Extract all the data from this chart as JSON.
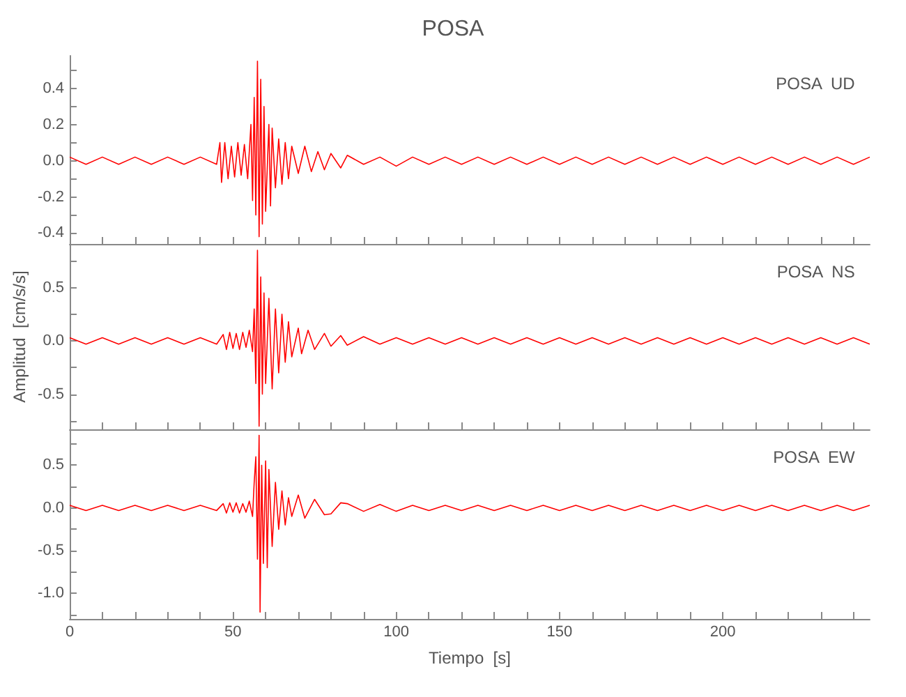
{
  "chart_data": [
    {
      "type": "line",
      "title": "POSA",
      "annotations": [
        "POSA  UD"
      ],
      "tick_labels": "y",
      "marker": "none",
      "grid": false,
      "xlim": [
        0,
        245
      ],
      "xticks": [
        0,
        {
          "value": 10,
          "label": null
        },
        {
          "value": 20,
          "label": null
        },
        {
          "value": 30,
          "label": null
        },
        {
          "value": 40,
          "label": null
        },
        50,
        {
          "value": 60,
          "label": null
        },
        {
          "value": 70,
          "label": null
        },
        {
          "value": 80,
          "label": null
        },
        {
          "value": 90,
          "label": null
        },
        100,
        {
          "value": 110,
          "label": null
        },
        {
          "value": 120,
          "label": null
        },
        {
          "value": 130,
          "label": null
        },
        {
          "value": 140,
          "label": null
        },
        150,
        {
          "value": 160,
          "label": null
        },
        {
          "value": 170,
          "label": null
        },
        {
          "value": 180,
          "label": null
        },
        {
          "value": 190,
          "label": null
        },
        200,
        {
          "value": 210,
          "label": null
        },
        {
          "value": 220,
          "label": null
        },
        {
          "value": 230,
          "label": null
        },
        {
          "value": 240,
          "label": null
        }
      ],
      "ylim": [
        -0.46,
        0.58
      ],
      "yticks": [
        -0.4,
        {
          "value": -0.3,
          "label": null
        },
        -0.2,
        {
          "value": -0.1,
          "label": null
        },
        {
          "value": 0,
          "label": "0.0"
        },
        {
          "value": 0.1,
          "label": null
        },
        0.2,
        {
          "value": 0.3,
          "label": null
        },
        0.4,
        {
          "value": 0.5,
          "label": null
        }
      ],
      "series": [
        {
          "color": "#ff0000",
          "x": [
            0,
            5,
            10,
            15,
            20,
            25,
            30,
            35,
            40,
            45,
            46,
            46.5,
            47.5,
            48.5,
            49.5,
            50.5,
            51.5,
            52.5,
            53.5,
            54.5,
            55.5,
            56,
            56.5,
            57,
            57.5,
            58,
            58.5,
            59,
            59.5,
            60,
            61,
            61.5,
            62,
            63,
            64,
            65,
            66,
            67,
            68,
            70,
            72,
            74,
            76,
            78,
            80,
            83,
            85,
            90,
            95,
            100,
            105,
            110,
            115,
            120,
            125,
            130,
            135,
            140,
            145,
            150,
            155,
            160,
            165,
            170,
            175,
            180,
            185,
            190,
            195,
            200,
            205,
            210,
            215,
            220,
            225,
            230,
            235,
            240,
            245
          ],
          "values": [
            0.02,
            -0.02,
            0.02,
            -0.02,
            0.02,
            -0.02,
            0.02,
            -0.02,
            0.02,
            -0.02,
            0.1,
            -0.12,
            0.1,
            -0.1,
            0.08,
            -0.09,
            0.1,
            -0.08,
            0.09,
            -0.1,
            0.2,
            -0.22,
            0.35,
            -0.3,
            0.55,
            -0.42,
            0.45,
            -0.35,
            0.3,
            -0.28,
            0.2,
            -0.25,
            0.18,
            -0.15,
            0.12,
            -0.13,
            0.1,
            -0.1,
            0.08,
            -0.07,
            0.08,
            -0.06,
            0.05,
            -0.05,
            0.04,
            -0.04,
            0.03,
            -0.02,
            0.02,
            -0.03,
            0.02,
            -0.02,
            0.02,
            -0.02,
            0.02,
            -0.02,
            0.02,
            -0.02,
            0.02,
            -0.02,
            0.02,
            -0.02,
            0.02,
            -0.02,
            0.02,
            -0.02,
            0.02,
            -0.02,
            0.02,
            -0.02,
            0.02,
            -0.02,
            0.02,
            -0.02,
            0.02,
            -0.02,
            0.02,
            -0.02,
            0.02
          ]
        }
      ]
    },
    {
      "type": "line",
      "ylabel": "Amplitud  [cm/s/s]",
      "annotations": [
        "POSA  NS"
      ],
      "tick_labels": "y",
      "marker": "none",
      "grid": false,
      "xlim": [
        0,
        245
      ],
      "xticks": [
        0,
        {
          "value": 10,
          "label": null
        },
        {
          "value": 20,
          "label": null
        },
        {
          "value": 30,
          "label": null
        },
        {
          "value": 40,
          "label": null
        },
        50,
        {
          "value": 60,
          "label": null
        },
        {
          "value": 70,
          "label": null
        },
        {
          "value": 80,
          "label": null
        },
        {
          "value": 90,
          "label": null
        },
        100,
        {
          "value": 110,
          "label": null
        },
        {
          "value": 120,
          "label": null
        },
        {
          "value": 130,
          "label": null
        },
        {
          "value": 140,
          "label": null
        },
        150,
        {
          "value": 160,
          "label": null
        },
        {
          "value": 170,
          "label": null
        },
        {
          "value": 180,
          "label": null
        },
        {
          "value": 190,
          "label": null
        },
        200,
        {
          "value": 210,
          "label": null
        },
        {
          "value": 220,
          "label": null
        },
        {
          "value": 230,
          "label": null
        },
        {
          "value": 240,
          "label": null
        }
      ],
      "ylim": [
        -0.83,
        0.91
      ],
      "yticks": [
        {
          "value": -0.75,
          "label": null
        },
        -0.5,
        {
          "value": -0.25,
          "label": null
        },
        {
          "value": 0,
          "label": "0.0"
        },
        {
          "value": 0.25,
          "label": null
        },
        0.5,
        {
          "value": 0.75,
          "label": null
        }
      ],
      "series": [
        {
          "color": "#ff0000",
          "x": [
            0,
            5,
            10,
            15,
            20,
            25,
            30,
            35,
            40,
            45,
            47,
            48,
            49,
            50,
            51,
            52,
            53,
            54,
            55,
            56,
            56.5,
            57,
            57.5,
            58,
            58.5,
            59,
            59.5,
            60,
            61,
            62,
            63,
            64,
            65,
            66,
            67,
            68,
            70,
            71,
            73,
            75,
            78,
            80,
            83,
            85,
            90,
            95,
            100,
            105,
            110,
            115,
            120,
            125,
            130,
            135,
            140,
            145,
            150,
            155,
            160,
            165,
            170,
            175,
            180,
            185,
            190,
            195,
            200,
            205,
            210,
            215,
            220,
            225,
            230,
            235,
            240,
            245
          ],
          "values": [
            0.03,
            -0.03,
            0.03,
            -0.03,
            0.03,
            -0.03,
            0.03,
            -0.03,
            0.03,
            -0.03,
            0.06,
            -0.08,
            0.08,
            -0.07,
            0.07,
            -0.08,
            0.08,
            -0.06,
            0.1,
            -0.1,
            0.3,
            -0.4,
            0.85,
            -0.8,
            0.6,
            -0.5,
            0.45,
            -0.4,
            0.4,
            -0.45,
            0.3,
            -0.3,
            0.25,
            -0.2,
            0.18,
            -0.15,
            0.12,
            -0.12,
            0.1,
            -0.08,
            0.07,
            -0.05,
            0.05,
            -0.04,
            0.04,
            -0.03,
            0.03,
            -0.03,
            0.03,
            -0.03,
            0.03,
            -0.03,
            0.03,
            -0.03,
            0.03,
            -0.03,
            0.03,
            -0.03,
            0.03,
            -0.03,
            0.03,
            -0.03,
            0.03,
            -0.03,
            0.03,
            -0.03,
            0.03,
            -0.03,
            0.03,
            -0.03,
            0.03,
            -0.03,
            0.03,
            -0.03,
            0.03,
            -0.03
          ]
        }
      ]
    },
    {
      "type": "line",
      "xlabel": "Tiempo  [s]",
      "annotations": [
        "POSA  EW"
      ],
      "marker": "none",
      "grid": false,
      "xlim": [
        0,
        245
      ],
      "xticks": [
        0,
        {
          "value": 10,
          "label": null
        },
        {
          "value": 20,
          "label": null
        },
        {
          "value": 30,
          "label": null
        },
        {
          "value": 40,
          "label": null
        },
        50,
        {
          "value": 60,
          "label": null
        },
        {
          "value": 70,
          "label": null
        },
        {
          "value": 80,
          "label": null
        },
        {
          "value": 90,
          "label": null
        },
        100,
        {
          "value": 110,
          "label": null
        },
        {
          "value": 120,
          "label": null
        },
        {
          "value": 130,
          "label": null
        },
        {
          "value": 140,
          "label": null
        },
        150,
        {
          "value": 160,
          "label": null
        },
        {
          "value": 170,
          "label": null
        },
        {
          "value": 180,
          "label": null
        },
        {
          "value": 190,
          "label": null
        },
        200,
        {
          "value": 210,
          "label": null
        },
        {
          "value": 220,
          "label": null
        },
        {
          "value": 230,
          "label": null
        },
        {
          "value": 240,
          "label": null
        }
      ],
      "ylim": [
        -1.3,
        0.92
      ],
      "yticks": [
        {
          "value": -1.25,
          "label": null
        },
        {
          "value": -1,
          "label": "-1.0"
        },
        {
          "value": -0.75,
          "label": null
        },
        -0.5,
        {
          "value": -0.25,
          "label": null
        },
        {
          "value": 0,
          "label": "0.0"
        },
        {
          "value": 0.25,
          "label": null
        },
        0.5,
        {
          "value": 0.75,
          "label": null
        }
      ],
      "series": [
        {
          "color": "#ff0000",
          "x": [
            0,
            5,
            10,
            15,
            20,
            25,
            30,
            35,
            40,
            45,
            47,
            48,
            49,
            50,
            51,
            52,
            53,
            54,
            55,
            56,
            56.5,
            57,
            57.5,
            58,
            58.3,
            58.8,
            59.3,
            60,
            60.5,
            61,
            62,
            63,
            64,
            65,
            66,
            67,
            68,
            70,
            72,
            75,
            78,
            80,
            83,
            85,
            90,
            95,
            100,
            105,
            110,
            115,
            120,
            125,
            130,
            135,
            140,
            145,
            150,
            155,
            160,
            165,
            170,
            175,
            180,
            185,
            190,
            195,
            200,
            205,
            210,
            215,
            220,
            225,
            230,
            235,
            240,
            245
          ],
          "values": [
            0.03,
            -0.03,
            0.03,
            -0.03,
            0.03,
            -0.03,
            0.03,
            -0.03,
            0.03,
            -0.03,
            0.05,
            -0.06,
            0.06,
            -0.05,
            0.06,
            -0.06,
            0.05,
            -0.05,
            0.08,
            -0.1,
            0.3,
            0.6,
            -0.6,
            0.85,
            -1.22,
            0.5,
            -0.65,
            0.55,
            -0.7,
            0.45,
            -0.45,
            0.3,
            -0.25,
            0.2,
            -0.2,
            0.12,
            -0.1,
            0.15,
            -0.12,
            0.1,
            -0.08,
            -0.07,
            0.06,
            0.05,
            -0.04,
            0.04,
            -0.04,
            0.03,
            -0.03,
            0.03,
            -0.03,
            0.03,
            -0.03,
            0.03,
            -0.03,
            0.03,
            -0.03,
            0.03,
            -0.03,
            0.03,
            -0.03,
            0.03,
            -0.03,
            0.03,
            -0.03,
            0.03,
            -0.03,
            0.03,
            -0.03,
            0.03,
            -0.03,
            0.03,
            -0.03,
            0.03,
            -0.03,
            0.03
          ]
        }
      ]
    }
  ]
}
